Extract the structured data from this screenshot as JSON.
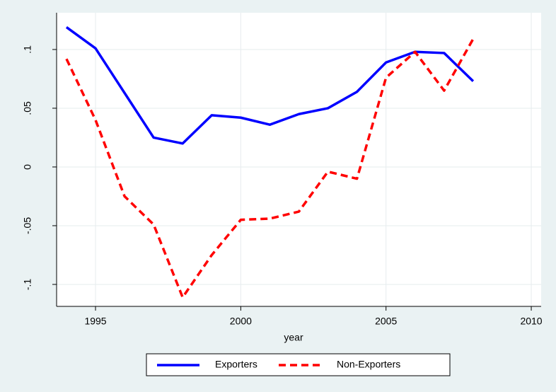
{
  "chart_data": {
    "type": "line",
    "x_label": "year",
    "x": [
      1994,
      1995,
      1996,
      1997,
      1998,
      1999,
      2000,
      2001,
      2002,
      2003,
      2004,
      2005,
      2006,
      2007,
      2008
    ],
    "series": [
      {
        "name": "Exporters",
        "color": "#0000ff",
        "dash": "solid",
        "values": [
          0.119,
          0.101,
          0.063,
          0.025,
          0.02,
          0.044,
          0.042,
          0.036,
          0.045,
          0.05,
          0.064,
          0.089,
          0.098,
          0.097,
          0.073
        ]
      },
      {
        "name": "Non-Exporters",
        "color": "#ff0000",
        "dash": "dashed",
        "values": [
          0.092,
          0.04,
          -0.025,
          -0.049,
          -0.111,
          -0.075,
          -0.045,
          -0.044,
          -0.038,
          -0.004,
          -0.01,
          0.076,
          0.098,
          0.065,
          0.109
        ]
      }
    ],
    "xlim": [
      1993.66,
      2010.34
    ],
    "xticks": [
      1995,
      2000,
      2005,
      2010
    ],
    "ylim": [
      -0.1187,
      0.1313
    ],
    "yticks": [
      {
        "value": -0.1,
        "label": "-.1"
      },
      {
        "value": -0.05,
        "label": "-.05"
      },
      0,
      {
        "value": 0.05,
        "label": ".05"
      },
      {
        "value": 0.1,
        "label": ".1"
      }
    ],
    "grid": true,
    "legend_position": "bottom"
  }
}
